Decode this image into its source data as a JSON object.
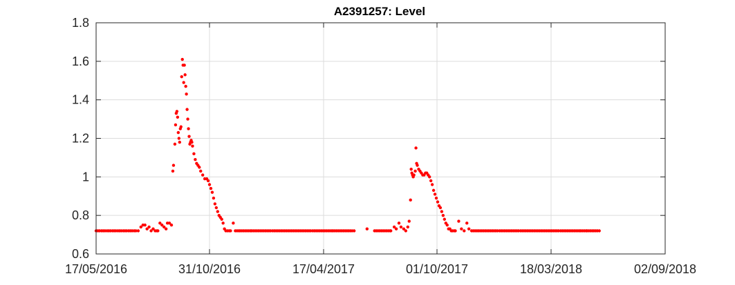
{
  "chart_data": {
    "type": "scatter",
    "title": "A2391257: Level",
    "xlabel": "",
    "ylabel": "",
    "x_type": "date",
    "xlim": [
      "17/05/2016",
      "02/09/2018"
    ],
    "ylim": [
      0.6,
      1.8
    ],
    "x_ticks": [
      "17/05/2016",
      "31/10/2016",
      "17/04/2017",
      "01/10/2017",
      "18/03/2018",
      "02/09/2018"
    ],
    "y_ticks": [
      "0.6",
      "0.8",
      "1",
      "1.2",
      "1.4",
      "1.6",
      "1.8"
    ],
    "grid": true,
    "colors": {
      "marker": "#ff0000",
      "grid": "#dcdcdc",
      "axes": "#262626"
    },
    "series": [
      {
        "points": [
          [
            "17/05/2016",
            0.72
          ],
          [
            "25/05/2016",
            0.72
          ],
          [
            "02/06/2016",
            0.72
          ],
          [
            "10/06/2016",
            0.72
          ],
          [
            "18/06/2016",
            0.72
          ],
          [
            "26/06/2016",
            0.72
          ],
          [
            "04/07/2016",
            0.72
          ],
          [
            "12/07/2016",
            0.72
          ],
          [
            "18/07/2016",
            0.72
          ],
          [
            "22/07/2016",
            0.74
          ],
          [
            "25/07/2016",
            0.75
          ],
          [
            "28/07/2016",
            0.75
          ],
          [
            "31/07/2016",
            0.73
          ],
          [
            "03/08/2016",
            0.74
          ],
          [
            "06/08/2016",
            0.72
          ],
          [
            "09/08/2016",
            0.73
          ],
          [
            "12/08/2016",
            0.72
          ],
          [
            "16/08/2016",
            0.72
          ],
          [
            "19/08/2016",
            0.76
          ],
          [
            "22/08/2016",
            0.75
          ],
          [
            "25/08/2016",
            0.74
          ],
          [
            "28/08/2016",
            0.73
          ],
          [
            "30/08/2016",
            0.76
          ],
          [
            "02/09/2016",
            0.76
          ],
          [
            "05/09/2016",
            0.75
          ],
          [
            "07/09/2016",
            1.03
          ],
          [
            "08/09/2016",
            1.06
          ],
          [
            "10/09/2016",
            1.17
          ],
          [
            "11/09/2016",
            1.27
          ],
          [
            "12/09/2016",
            1.33
          ],
          [
            "13/09/2016",
            1.34
          ],
          [
            "14/09/2016",
            1.31
          ],
          [
            "15/09/2016",
            1.23
          ],
          [
            "16/09/2016",
            1.2
          ],
          [
            "17/09/2016",
            1.18
          ],
          [
            "18/09/2016",
            1.25
          ],
          [
            "19/09/2016",
            1.26
          ],
          [
            "20/09/2016",
            1.52
          ],
          [
            "21/09/2016",
            1.61
          ],
          [
            "22/09/2016",
            1.58
          ],
          [
            "23/09/2016",
            1.49
          ],
          [
            "24/09/2016",
            1.58
          ],
          [
            "25/09/2016",
            1.53
          ],
          [
            "26/09/2016",
            1.47
          ],
          [
            "27/09/2016",
            1.43
          ],
          [
            "28/09/2016",
            1.35
          ],
          [
            "29/09/2016",
            1.3
          ],
          [
            "30/09/2016",
            1.25
          ],
          [
            "01/10/2016",
            1.21
          ],
          [
            "02/10/2016",
            1.17
          ],
          [
            "03/10/2016",
            1.18
          ],
          [
            "04/10/2016",
            1.19
          ],
          [
            "05/10/2016",
            1.18
          ],
          [
            "06/10/2016",
            1.16
          ],
          [
            "08/10/2016",
            1.12
          ],
          [
            "10/10/2016",
            1.09
          ],
          [
            "12/10/2016",
            1.07
          ],
          [
            "14/10/2016",
            1.06
          ],
          [
            "16/10/2016",
            1.05
          ],
          [
            "18/10/2016",
            1.03
          ],
          [
            "21/10/2016",
            1.01
          ],
          [
            "24/10/2016",
            0.99
          ],
          [
            "27/10/2016",
            0.99
          ],
          [
            "29/10/2016",
            0.98
          ],
          [
            "31/10/2016",
            0.96
          ],
          [
            "02/11/2016",
            0.94
          ],
          [
            "04/11/2016",
            0.92
          ],
          [
            "06/11/2016",
            0.89
          ],
          [
            "08/11/2016",
            0.86
          ],
          [
            "10/11/2016",
            0.84
          ],
          [
            "12/11/2016",
            0.82
          ],
          [
            "14/11/2016",
            0.8
          ],
          [
            "16/11/2016",
            0.79
          ],
          [
            "18/11/2016",
            0.78
          ],
          [
            "20/11/2016",
            0.76
          ],
          [
            "22/11/2016",
            0.73
          ],
          [
            "24/11/2016",
            0.72
          ],
          [
            "01/12/2016",
            0.72
          ],
          [
            "05/12/2016",
            0.76
          ],
          [
            "08/12/2016",
            0.72
          ],
          [
            "15/12/2016",
            0.72
          ],
          [
            "01/01/2017",
            0.72
          ],
          [
            "01/02/2017",
            0.72
          ],
          [
            "01/03/2017",
            0.72
          ],
          [
            "01/04/2017",
            0.72
          ],
          [
            "01/05/2017",
            0.72
          ],
          [
            "01/06/2017",
            0.72
          ],
          [
            "20/06/2017",
            0.73
          ],
          [
            "01/07/2017",
            0.72
          ],
          [
            "25/07/2017",
            0.72
          ],
          [
            "30/07/2017",
            0.74
          ],
          [
            "02/08/2017",
            0.73
          ],
          [
            "06/08/2017",
            0.76
          ],
          [
            "09/08/2017",
            0.74
          ],
          [
            "13/08/2017",
            0.73
          ],
          [
            "16/08/2017",
            0.72
          ],
          [
            "19/08/2017",
            0.74
          ],
          [
            "21/08/2017",
            0.77
          ],
          [
            "23/08/2017",
            0.88
          ],
          [
            "24/08/2017",
            1.04
          ],
          [
            "25/08/2017",
            1.02
          ],
          [
            "26/08/2017",
            1.01
          ],
          [
            "27/08/2017",
            1.0
          ],
          [
            "28/08/2017",
            1.01
          ],
          [
            "30/08/2017",
            1.03
          ],
          [
            "31/08/2017",
            1.15
          ],
          [
            "01/09/2017",
            1.07
          ],
          [
            "02/09/2017",
            1.06
          ],
          [
            "04/09/2017",
            1.04
          ],
          [
            "06/09/2017",
            1.03
          ],
          [
            "08/09/2017",
            1.02
          ],
          [
            "10/09/2017",
            1.01
          ],
          [
            "12/09/2017",
            1.01
          ],
          [
            "14/09/2017",
            1.02
          ],
          [
            "16/09/2017",
            1.02
          ],
          [
            "18/09/2017",
            1.01
          ],
          [
            "20/09/2017",
            1.0
          ],
          [
            "22/09/2017",
            0.98
          ],
          [
            "24/09/2017",
            0.96
          ],
          [
            "26/09/2017",
            0.93
          ],
          [
            "28/09/2017",
            0.91
          ],
          [
            "30/09/2017",
            0.89
          ],
          [
            "02/10/2017",
            0.87
          ],
          [
            "04/10/2017",
            0.85
          ],
          [
            "06/10/2017",
            0.84
          ],
          [
            "08/10/2017",
            0.82
          ],
          [
            "10/10/2017",
            0.8
          ],
          [
            "12/10/2017",
            0.78
          ],
          [
            "14/10/2017",
            0.76
          ],
          [
            "16/10/2017",
            0.75
          ],
          [
            "18/10/2017",
            0.73
          ],
          [
            "20/10/2017",
            0.73
          ],
          [
            "22/10/2017",
            0.72
          ],
          [
            "24/10/2017",
            0.72
          ],
          [
            "28/10/2017",
            0.72
          ],
          [
            "02/11/2017",
            0.77
          ],
          [
            "06/11/2017",
            0.73
          ],
          [
            "10/11/2017",
            0.72
          ],
          [
            "14/11/2017",
            0.76
          ],
          [
            "17/11/2017",
            0.73
          ],
          [
            "21/11/2017",
            0.72
          ],
          [
            "01/12/2017",
            0.72
          ],
          [
            "01/01/2018",
            0.72
          ],
          [
            "01/02/2018",
            0.72
          ],
          [
            "01/03/2018",
            0.72
          ],
          [
            "01/04/2018",
            0.72
          ],
          [
            "01/05/2018",
            0.72
          ],
          [
            "10/05/2018",
            0.72
          ],
          [
            "20/05/2018",
            0.72
          ],
          [
            "28/05/2018",
            0.72
          ]
        ]
      }
    ]
  }
}
